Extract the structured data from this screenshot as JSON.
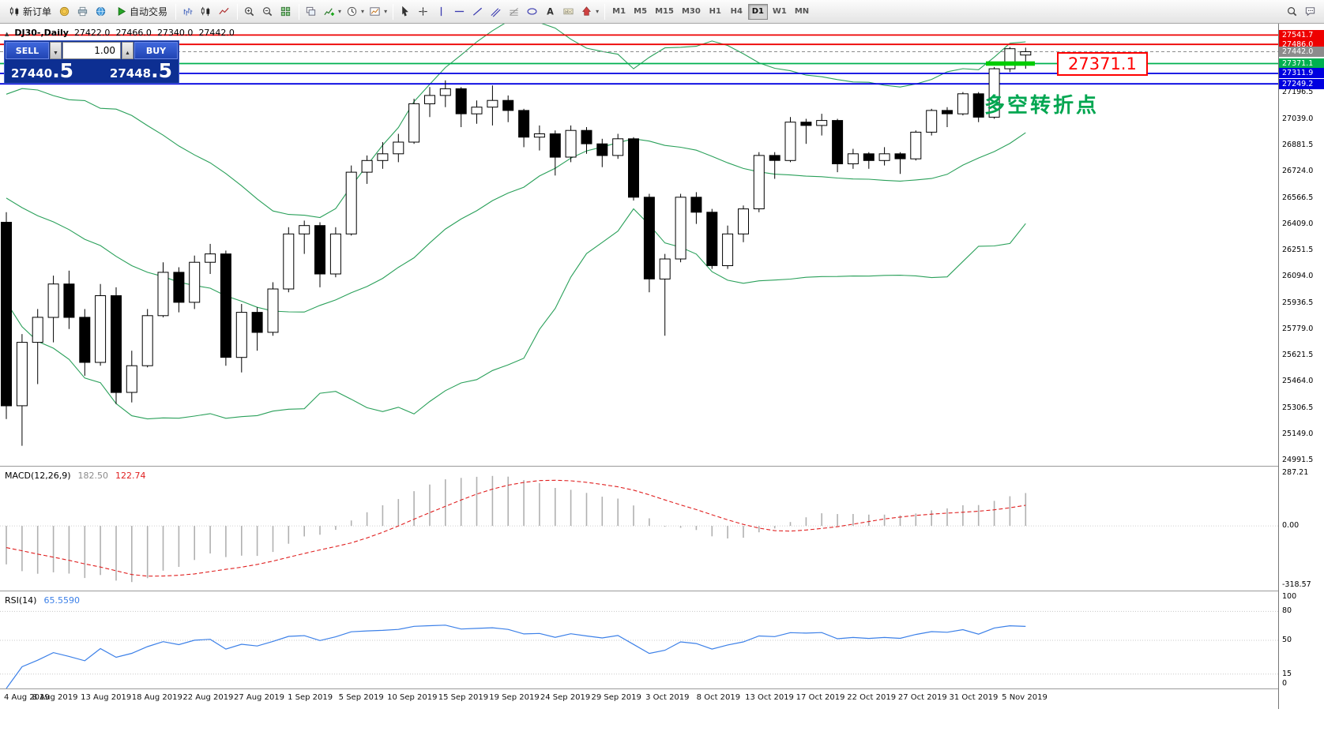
{
  "icons": {
    "triangle_up": "▲",
    "chevron_down": "▾",
    "spinner_down": "▼",
    "spinner_up": "▲"
  },
  "toolbar": {
    "groups": [
      {
        "items": [
          {
            "name": "new-order",
            "icon": "candles",
            "label": "新订单"
          },
          {
            "name": "quotes",
            "icon": "coin"
          },
          {
            "name": "print",
            "icon": "printer"
          },
          {
            "name": "community",
            "icon": "globe"
          },
          {
            "name": "auto-trading",
            "icon": "play",
            "label": "自动交易"
          }
        ]
      },
      {
        "items": [
          {
            "name": "bar-chart-mode",
            "icon": "bars"
          },
          {
            "name": "candle-chart-mode",
            "icon": "candles"
          },
          {
            "name": "line-chart-mode",
            "icon": "linechart"
          }
        ]
      },
      {
        "items": [
          {
            "name": "zoom-in",
            "icon": "zoom-in"
          },
          {
            "name": "zoom-out",
            "icon": "zoom-out"
          },
          {
            "name": "tile-windows",
            "icon": "tile"
          }
        ]
      },
      {
        "items": [
          {
            "name": "cascade-windows",
            "icon": "cascade"
          },
          {
            "name": "indicators-list",
            "icon": "indicator-plus",
            "dropdown": true
          },
          {
            "name": "periods",
            "icon": "clock",
            "dropdown": true
          },
          {
            "name": "templates",
            "icon": "template",
            "dropdown": true
          }
        ]
      },
      {
        "items": [
          {
            "name": "cursor",
            "icon": "cursor"
          },
          {
            "name": "crosshair",
            "icon": "crosshair"
          },
          {
            "name": "vertical-line",
            "icon": "vline"
          },
          {
            "name": "horizontal-line",
            "icon": "hline"
          },
          {
            "name": "trendline",
            "icon": "trend"
          },
          {
            "name": "equidistant-channel",
            "icon": "channel"
          },
          {
            "name": "fibonacci-retracement",
            "icon": "fibo"
          },
          {
            "name": "shapes",
            "icon": "ellipse"
          },
          {
            "name": "text",
            "icon": "text-a"
          },
          {
            "name": "text-label",
            "icon": "label-t"
          },
          {
            "name": "arrows",
            "icon": "arrow-sym",
            "dropdown": true
          }
        ]
      }
    ],
    "timeframes": [
      "M1",
      "M5",
      "M15",
      "M30",
      "H1",
      "H4",
      "D1",
      "W1",
      "MN"
    ],
    "active_timeframe": "D1",
    "right_items": [
      {
        "name": "search",
        "icon": "magnifier"
      },
      {
        "name": "community-chat",
        "icon": "bubble"
      }
    ]
  },
  "chart": {
    "title": {
      "symbol_period": "DJ30-,Daily",
      "open": "27422.0",
      "high": "27466.0",
      "low": "27340.0",
      "close": "27442.0"
    },
    "order_panel": {
      "sell_label": "SELL",
      "buy_label": "BUY",
      "volume": "1.00",
      "sell_price_main": "27440",
      "sell_price_frac": ".5",
      "buy_price_main": "27448",
      "buy_price_frac": ".5"
    },
    "levels": [
      {
        "label": "27541.7",
        "price": 27541.7,
        "type": "resistance",
        "color": "#ee0000"
      },
      {
        "label": "27486.0",
        "price": 27486.0,
        "type": "resistance",
        "color": "#ee0000"
      },
      {
        "label": "27442.0",
        "price": 27442.0,
        "type": "current-price",
        "color": "#8c8c8c",
        "dashed": true
      },
      {
        "label": "27371.1",
        "price": 27371.1,
        "type": "pivot",
        "color": "#00b050"
      },
      {
        "label": "27311.9",
        "price": 27311.9,
        "type": "support",
        "color": "#0000e0"
      },
      {
        "label": "27249.2",
        "price": 27249.2,
        "type": "support",
        "color": "#0000e0"
      }
    ],
    "annotations": {
      "price_label": "27371.1",
      "note_text": "多空转折点"
    },
    "colors": {
      "band": "#2aa05a",
      "macd_bar": "#b0b0b0",
      "macd_signal": "#e02020",
      "rsi_line": "#3c80e8",
      "candle_up": "#ffffff",
      "candle_down": "#000000",
      "highlight": "#00cc00"
    }
  },
  "chart_data": {
    "type": "candlestick",
    "symbol": "DJ30-",
    "period": "Daily",
    "price_axis_range": [
      24960,
      27610
    ],
    "y_axis_ticks": [
      "27196.5",
      "27039.0",
      "26881.5",
      "26724.0",
      "26566.5",
      "26409.0",
      "26251.5",
      "26094.0",
      "25936.5",
      "25779.0",
      "25621.5",
      "25464.0",
      "25306.5",
      "25149.0",
      "24991.5"
    ],
    "x_labels": [
      "4 Aug 2019",
      "8 Aug 2019",
      "13 Aug 2019",
      "18 Aug 2019",
      "22 Aug 2019",
      "27 Aug 2019",
      "1 Sep 2019",
      "5 Sep 2019",
      "10 Sep 2019",
      "15 Sep 2019",
      "19 Sep 2019",
      "24 Sep 2019",
      "29 Sep 2019",
      "3 Oct 2019",
      "8 Oct 2019",
      "13 Oct 2019",
      "17 Oct 2019",
      "22 Oct 2019",
      "27 Oct 2019",
      "31 Oct 2019",
      "5 Nov 2019"
    ],
    "ohlc": [
      [
        26420,
        26480,
        25240,
        25320
      ],
      [
        25320,
        25750,
        25080,
        25700
      ],
      [
        25700,
        25900,
        25450,
        25850
      ],
      [
        25850,
        26100,
        25700,
        26050
      ],
      [
        26050,
        26130,
        25780,
        25850
      ],
      [
        25850,
        25900,
        25500,
        25580
      ],
      [
        25580,
        26050,
        25560,
        25980
      ],
      [
        25980,
        26030,
        25330,
        25400
      ],
      [
        25400,
        25650,
        25340,
        25560
      ],
      [
        25560,
        25900,
        25550,
        25860
      ],
      [
        25860,
        26180,
        25850,
        26120
      ],
      [
        26120,
        26150,
        25880,
        25940
      ],
      [
        25940,
        26220,
        25900,
        26180
      ],
      [
        26180,
        26290,
        26110,
        26230
      ],
      [
        26230,
        26250,
        25560,
        25610
      ],
      [
        25610,
        25930,
        25520,
        25880
      ],
      [
        25880,
        25910,
        25650,
        25760
      ],
      [
        25760,
        26060,
        25740,
        26020
      ],
      [
        26020,
        26390,
        26000,
        26350
      ],
      [
        26350,
        26430,
        26230,
        26400
      ],
      [
        26400,
        26420,
        26030,
        26110
      ],
      [
        26110,
        26390,
        26090,
        26350
      ],
      [
        26350,
        26760,
        26340,
        26720
      ],
      [
        26720,
        26820,
        26650,
        26790
      ],
      [
        26790,
        26900,
        26740,
        26830
      ],
      [
        26830,
        26950,
        26780,
        26900
      ],
      [
        26900,
        27160,
        26890,
        27130
      ],
      [
        27130,
        27230,
        27050,
        27180
      ],
      [
        27180,
        27270,
        27110,
        27220
      ],
      [
        27220,
        27230,
        26990,
        27070
      ],
      [
        27070,
        27150,
        27010,
        27110
      ],
      [
        27110,
        27240,
        27000,
        27150
      ],
      [
        27150,
        27180,
        27020,
        27090
      ],
      [
        27090,
        27100,
        26870,
        26930
      ],
      [
        26930,
        27000,
        26850,
        26950
      ],
      [
        26950,
        26970,
        26700,
        26810
      ],
      [
        26810,
        27000,
        26780,
        26970
      ],
      [
        26970,
        26990,
        26830,
        26890
      ],
      [
        26890,
        26920,
        26750,
        26820
      ],
      [
        26820,
        26950,
        26800,
        26920
      ],
      [
        26920,
        26930,
        26550,
        26570
      ],
      [
        26570,
        26590,
        26000,
        26080
      ],
      [
        26080,
        26230,
        25740,
        26200
      ],
      [
        26200,
        26590,
        26180,
        26570
      ],
      [
        26570,
        26600,
        26410,
        26480
      ],
      [
        26480,
        26500,
        26140,
        26160
      ],
      [
        26160,
        26400,
        26140,
        26350
      ],
      [
        26350,
        26520,
        26300,
        26500
      ],
      [
        26500,
        26840,
        26480,
        26820
      ],
      [
        26820,
        26840,
        26680,
        26790
      ],
      [
        26790,
        27050,
        26780,
        27020
      ],
      [
        27020,
        27040,
        26890,
        27000
      ],
      [
        27000,
        27070,
        26940,
        27030
      ],
      [
        27030,
        27040,
        26720,
        26770
      ],
      [
        26770,
        26860,
        26740,
        26830
      ],
      [
        26830,
        26840,
        26740,
        26790
      ],
      [
        26790,
        26870,
        26760,
        26830
      ],
      [
        26830,
        26840,
        26710,
        26800
      ],
      [
        26800,
        26970,
        26790,
        26960
      ],
      [
        26960,
        27100,
        26940,
        27090
      ],
      [
        27090,
        27110,
        26990,
        27070
      ],
      [
        27070,
        27200,
        27060,
        27190
      ],
      [
        27190,
        27200,
        27020,
        27050
      ],
      [
        27050,
        27350,
        27040,
        27340
      ],
      [
        27340,
        27470,
        27320,
        27460
      ],
      [
        27422,
        27466,
        27340,
        27442
      ]
    ],
    "indicators": {
      "bollinger": {
        "period": 20,
        "deviation": 2
      },
      "macd": {
        "name": "MACD(12,26,9)",
        "main_value": "182.50",
        "signal_value": "122.74",
        "axis_labels": [
          "287.21",
          "0.00",
          "-318.57"
        ]
      },
      "rsi": {
        "name": "RSI(14)",
        "value": "65.5590",
        "axis_labels": [
          "100",
          "80",
          "50",
          "15",
          "0"
        ],
        "levels": [
          80,
          50,
          15
        ]
      }
    }
  }
}
